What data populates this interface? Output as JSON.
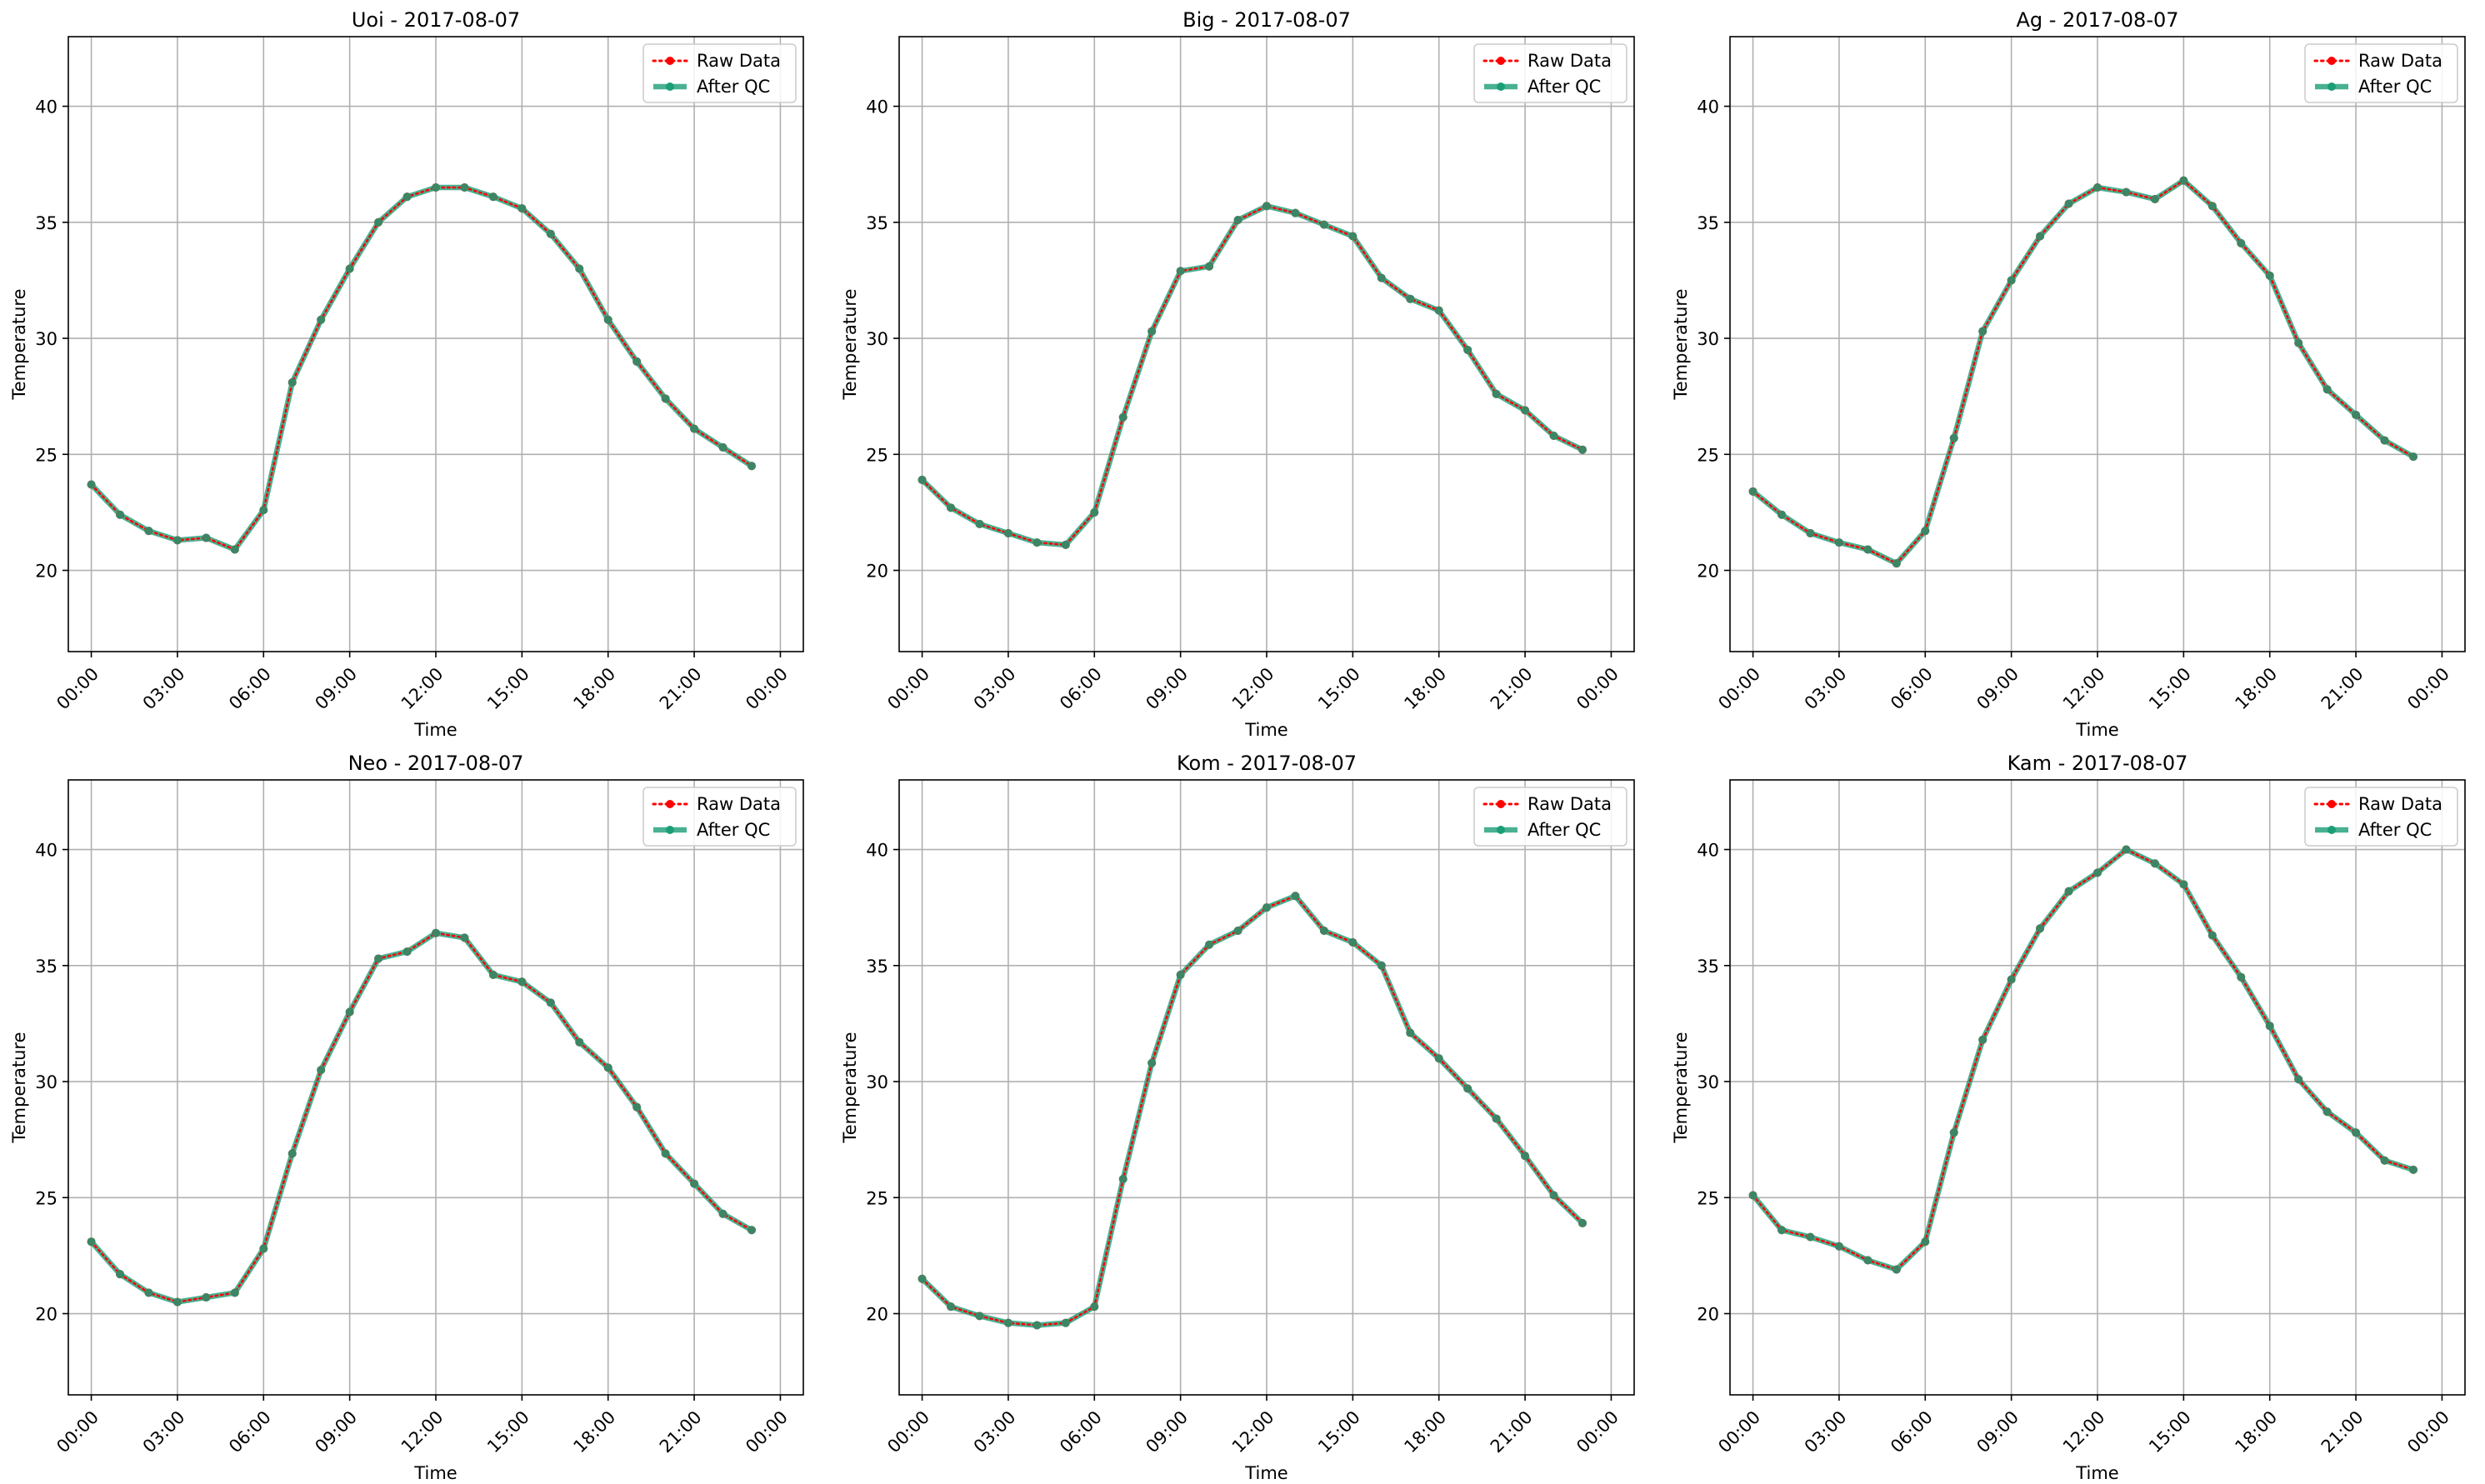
{
  "figure": {
    "legend": {
      "raw_label": "Raw Data",
      "qc_label": "After QC",
      "placement": "upper-right"
    },
    "colors": {
      "raw": "#ff0000",
      "qc": "#1b9e77",
      "grid": "#b0b0b0",
      "axis": "#000000"
    }
  },
  "chart_data": [
    {
      "type": "line",
      "title": "Uoi - 2017-08-07",
      "xlabel": "Time",
      "ylabel": "Temperature",
      "ylim": [
        16.5,
        43.0
      ],
      "xticks": [
        "00:00",
        "03:00",
        "06:00",
        "09:00",
        "12:00",
        "15:00",
        "18:00",
        "21:00",
        "00:00"
      ],
      "yticks": [
        "20",
        "25",
        "30",
        "35",
        "40"
      ],
      "grid": true,
      "series": [
        {
          "name": "Raw Data",
          "values": [
            23.7,
            22.4,
            21.7,
            21.3,
            21.4,
            20.9,
            22.6,
            28.1,
            30.8,
            33.0,
            35.0,
            36.1,
            36.5,
            36.5,
            36.1,
            35.6,
            34.5,
            33.0,
            30.8,
            29.0,
            27.4,
            26.1,
            25.3,
            24.5
          ]
        },
        {
          "name": "After QC",
          "values": [
            23.7,
            22.4,
            21.7,
            21.3,
            21.4,
            20.9,
            22.6,
            28.1,
            30.8,
            33.0,
            35.0,
            36.1,
            36.5,
            36.5,
            36.1,
            35.6,
            34.5,
            33.0,
            30.8,
            29.0,
            27.4,
            26.1,
            25.3,
            24.5
          ]
        }
      ]
    },
    {
      "type": "line",
      "title": "Big - 2017-08-07",
      "xlabel": "Time",
      "ylabel": "Temperature",
      "ylim": [
        16.5,
        43.0
      ],
      "xticks": [
        "00:00",
        "03:00",
        "06:00",
        "09:00",
        "12:00",
        "15:00",
        "18:00",
        "21:00",
        "00:00"
      ],
      "yticks": [
        "20",
        "25",
        "30",
        "35",
        "40"
      ],
      "grid": true,
      "series": [
        {
          "name": "Raw Data",
          "values": [
            23.9,
            22.7,
            22.0,
            21.6,
            21.2,
            21.1,
            22.5,
            26.6,
            30.3,
            32.9,
            33.1,
            35.1,
            35.7,
            35.4,
            34.9,
            34.4,
            32.6,
            31.7,
            31.2,
            29.5,
            27.6,
            26.9,
            25.8,
            25.2
          ]
        },
        {
          "name": "After QC",
          "values": [
            23.9,
            22.7,
            22.0,
            21.6,
            21.2,
            21.1,
            22.5,
            26.6,
            30.3,
            32.9,
            33.1,
            35.1,
            35.7,
            35.4,
            34.9,
            34.4,
            32.6,
            31.7,
            31.2,
            29.5,
            27.6,
            26.9,
            25.8,
            25.2
          ]
        }
      ]
    },
    {
      "type": "line",
      "title": "Ag - 2017-08-07",
      "xlabel": "Time",
      "ylabel": "Temperature",
      "ylim": [
        16.5,
        43.0
      ],
      "xticks": [
        "00:00",
        "03:00",
        "06:00",
        "09:00",
        "12:00",
        "15:00",
        "18:00",
        "21:00",
        "00:00"
      ],
      "yticks": [
        "20",
        "25",
        "30",
        "35",
        "40"
      ],
      "grid": true,
      "series": [
        {
          "name": "Raw Data",
          "values": [
            23.4,
            22.4,
            21.6,
            21.2,
            20.9,
            20.3,
            21.7,
            25.7,
            30.3,
            32.5,
            34.4,
            35.8,
            36.5,
            36.3,
            36.0,
            36.8,
            35.7,
            34.1,
            32.7,
            29.8,
            27.8,
            26.7,
            25.6,
            24.9
          ]
        },
        {
          "name": "After QC",
          "values": [
            23.4,
            22.4,
            21.6,
            21.2,
            20.9,
            20.3,
            21.7,
            25.7,
            30.3,
            32.5,
            34.4,
            35.8,
            36.5,
            36.3,
            36.0,
            36.8,
            35.7,
            34.1,
            32.7,
            29.8,
            27.8,
            26.7,
            25.6,
            24.9
          ]
        }
      ]
    },
    {
      "type": "line",
      "title": "Neo - 2017-08-07",
      "xlabel": "Time",
      "ylabel": "Temperature",
      "ylim": [
        16.5,
        43.0
      ],
      "xticks": [
        "00:00",
        "03:00",
        "06:00",
        "09:00",
        "12:00",
        "15:00",
        "18:00",
        "21:00",
        "00:00"
      ],
      "yticks": [
        "20",
        "25",
        "30",
        "35",
        "40"
      ],
      "grid": true,
      "series": [
        {
          "name": "Raw Data",
          "values": [
            23.1,
            21.7,
            20.9,
            20.5,
            20.7,
            20.9,
            22.8,
            26.9,
            30.5,
            33.0,
            35.3,
            35.6,
            36.4,
            36.2,
            34.6,
            34.3,
            33.4,
            31.7,
            30.6,
            28.9,
            26.9,
            25.6,
            24.3,
            23.6
          ]
        },
        {
          "name": "After QC",
          "values": [
            23.1,
            21.7,
            20.9,
            20.5,
            20.7,
            20.9,
            22.8,
            26.9,
            30.5,
            33.0,
            35.3,
            35.6,
            36.4,
            36.2,
            34.6,
            34.3,
            33.4,
            31.7,
            30.6,
            28.9,
            26.9,
            25.6,
            24.3,
            23.6
          ]
        }
      ]
    },
    {
      "type": "line",
      "title": "Kom - 2017-08-07",
      "xlabel": "Time",
      "ylabel": "Temperature",
      "ylim": [
        16.5,
        43.0
      ],
      "xticks": [
        "00:00",
        "03:00",
        "06:00",
        "09:00",
        "12:00",
        "15:00",
        "18:00",
        "21:00",
        "00:00"
      ],
      "yticks": [
        "20",
        "25",
        "30",
        "35",
        "40"
      ],
      "grid": true,
      "series": [
        {
          "name": "Raw Data",
          "values": [
            21.5,
            20.3,
            19.9,
            19.6,
            19.5,
            19.6,
            20.3,
            25.8,
            30.8,
            34.6,
            35.9,
            36.5,
            37.5,
            38.0,
            36.5,
            36.0,
            35.0,
            32.1,
            31.0,
            29.7,
            28.4,
            26.8,
            25.1,
            23.9
          ]
        },
        {
          "name": "After QC",
          "values": [
            21.5,
            20.3,
            19.9,
            19.6,
            19.5,
            19.6,
            20.3,
            25.8,
            30.8,
            34.6,
            35.9,
            36.5,
            37.5,
            38.0,
            36.5,
            36.0,
            35.0,
            32.1,
            31.0,
            29.7,
            28.4,
            26.8,
            25.1,
            23.9
          ]
        }
      ]
    },
    {
      "type": "line",
      "title": "Kam - 2017-08-07",
      "xlabel": "Time",
      "ylabel": "Temperature",
      "ylim": [
        16.5,
        43.0
      ],
      "xticks": [
        "00:00",
        "03:00",
        "06:00",
        "09:00",
        "12:00",
        "15:00",
        "18:00",
        "21:00",
        "00:00"
      ],
      "yticks": [
        "20",
        "25",
        "30",
        "35",
        "40"
      ],
      "grid": true,
      "series": [
        {
          "name": "Raw Data",
          "values": [
            25.1,
            23.6,
            23.3,
            22.9,
            22.3,
            21.9,
            23.1,
            27.8,
            31.8,
            34.4,
            36.6,
            38.2,
            39.0,
            40.0,
            39.4,
            38.5,
            36.3,
            34.5,
            32.4,
            30.1,
            28.7,
            27.8,
            26.6,
            26.2
          ]
        },
        {
          "name": "After QC",
          "values": [
            25.1,
            23.6,
            23.3,
            22.9,
            22.3,
            21.9,
            23.1,
            27.8,
            31.8,
            34.4,
            36.6,
            38.2,
            39.0,
            40.0,
            39.4,
            38.5,
            36.3,
            34.5,
            32.4,
            30.1,
            28.7,
            27.8,
            26.6,
            26.2
          ]
        }
      ]
    }
  ]
}
